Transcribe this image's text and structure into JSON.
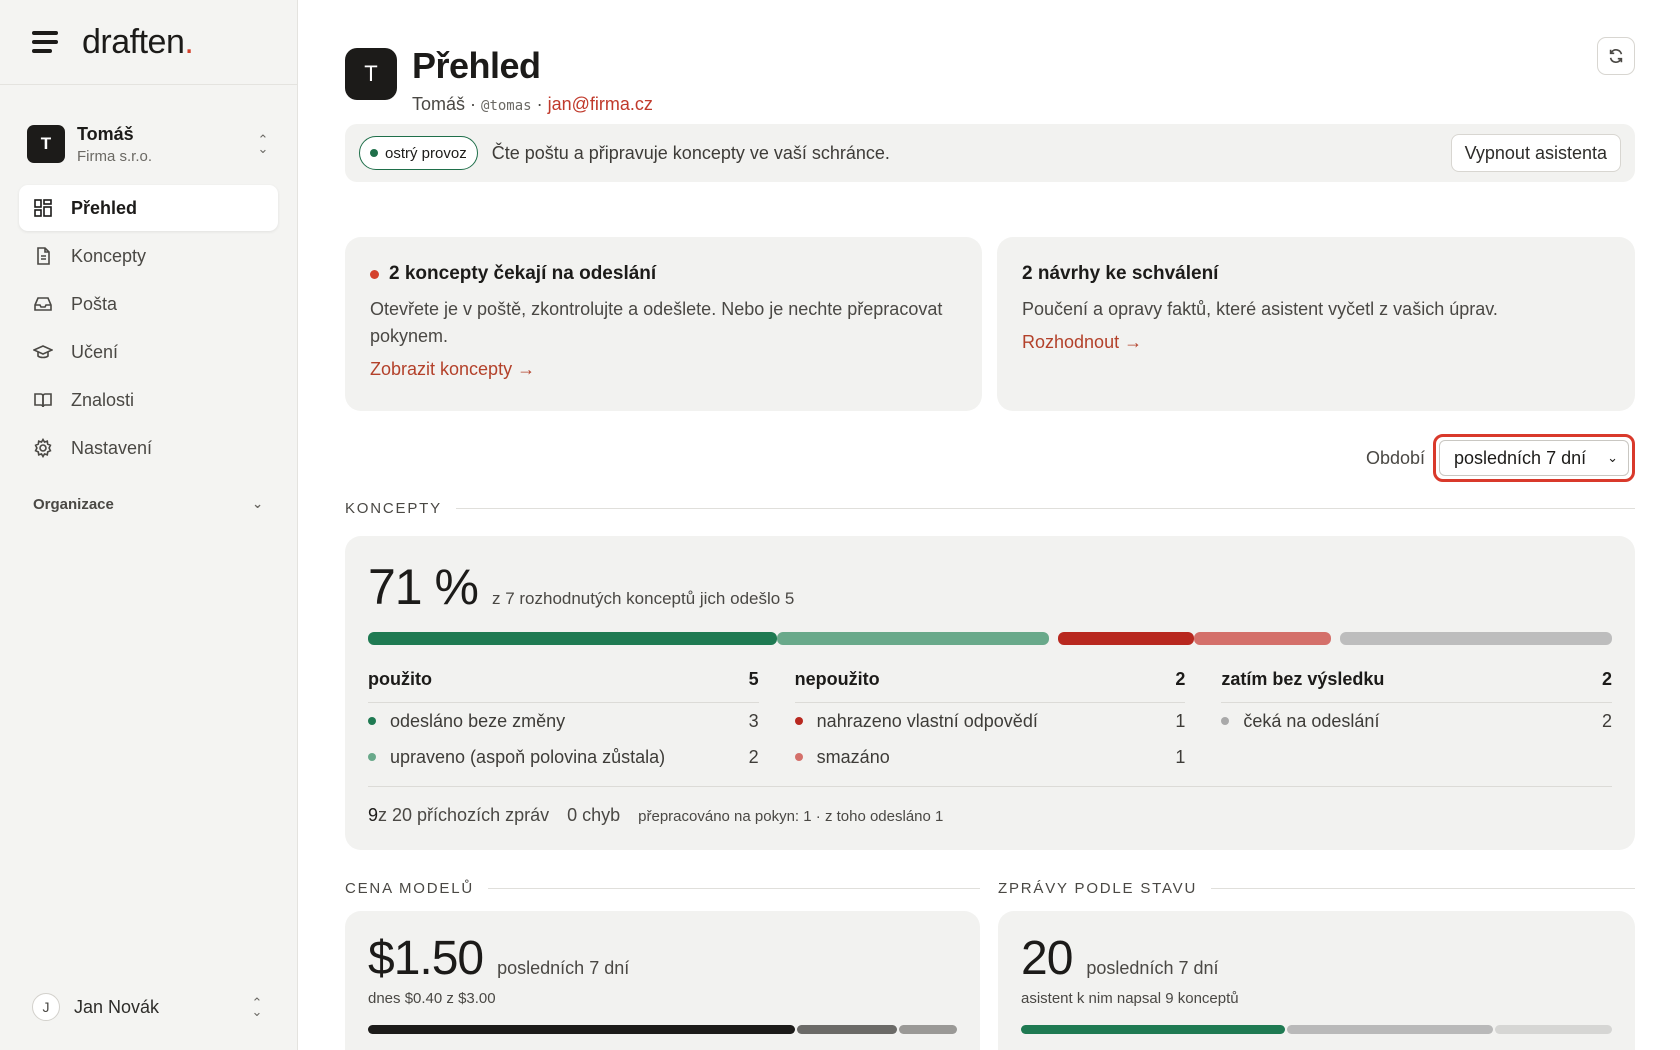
{
  "brand": {
    "name": "draften",
    "dot": "."
  },
  "workspace": {
    "initial": "T",
    "name": "Tomáš",
    "company": "Firma s.r.o."
  },
  "nav": [
    {
      "label": "Přehled",
      "icon": "dashboard-icon",
      "active": true
    },
    {
      "label": "Koncepty",
      "icon": "document-icon"
    },
    {
      "label": "Pošta",
      "icon": "inbox-icon"
    },
    {
      "label": "Učení",
      "icon": "graduation-cap-icon"
    },
    {
      "label": "Znalosti",
      "icon": "book-icon"
    },
    {
      "label": "Nastavení",
      "icon": "gear-icon"
    }
  ],
  "org_section": {
    "label": "Organizace"
  },
  "user": {
    "initial": "J",
    "name": "Jan Novák"
  },
  "header": {
    "initial": "T",
    "title": "Přehled",
    "name": "Tomáš",
    "sep1": " · ",
    "handle": "@tomas",
    "sep2": " · ",
    "email": "jan@firma.cz"
  },
  "status": {
    "badge": "ostrý provoz",
    "text": "Čte poštu a připravuje koncepty ve vaší schránce.",
    "button": "Vypnout asistenta"
  },
  "cards": {
    "drafts": {
      "title": "2 koncepty čekají na odeslání",
      "text": "Otevřete je v poště, zkontrolujte a odešlete. Nebo je nechte přepracovat pokynem.",
      "link": "Zobrazit koncepty →"
    },
    "proposals": {
      "title": "2 návrhy ke schválení",
      "text": "Poučení a opravy faktů, které asistent vyčetl z vašich úprav.",
      "link": "Rozhodnout →"
    }
  },
  "period": {
    "label": "Období",
    "selected": "posledních 7 dní"
  },
  "concepts": {
    "section": "KONCEPTY",
    "pct": "71 %",
    "desc": "z 7 rozhodnutých konceptů jich odešlo 5",
    "colors": {
      "used_a": "#1f7a52",
      "used_b": "#69a98a",
      "unused_a": "#b8281f",
      "unused_b": "#d4706a",
      "pending": "#bdbdbd"
    },
    "segments": [
      {
        "value": 3,
        "color": "#1f7a52"
      },
      {
        "value": 2,
        "color": "#69a98a"
      },
      {
        "value": 1,
        "color": "#b8281f"
      },
      {
        "value": 1,
        "color": "#d4706a"
      },
      {
        "value": 2,
        "color": "#bdbdbd"
      }
    ],
    "columns": [
      {
        "title": "použito",
        "count": "5",
        "rows": [
          {
            "label": "odesláno beze změny",
            "value": "3",
            "color": "#1f7a52"
          },
          {
            "label": "upraveno (aspoň polovina zůstala)",
            "value": "2",
            "color": "#69a98a"
          }
        ]
      },
      {
        "title": "nepoužito",
        "count": "2",
        "rows": [
          {
            "label": "nahrazeno vlastní odpovědí",
            "value": "1",
            "color": "#b8281f"
          },
          {
            "label": "smazáno",
            "value": "1",
            "color": "#d4706a"
          }
        ]
      },
      {
        "title": "zatím bez výsledku",
        "count": "2",
        "rows": [
          {
            "label": "čeká na odeslání",
            "value": "2",
            "color": "#a9a9a9"
          }
        ]
      }
    ],
    "footer": {
      "count": "9",
      "of_text": " z 20 příchozích zpráv",
      "errors": "0 chyb",
      "reworked": "přepracováno na pokyn: 1 · z toho odesláno 1"
    }
  },
  "cost": {
    "section": "CENA MODELŮ",
    "amount": "$1.50",
    "period": "posledních 7 dní",
    "sub": "dnes $0.40 z $3.00",
    "segments": [
      {
        "value": 0.73,
        "color": "#1c1b19"
      },
      {
        "value": 0.17,
        "color": "#6b6a67"
      },
      {
        "value": 0.1,
        "color": "#9a9996"
      }
    ]
  },
  "messages": {
    "section": "ZPRÁVY PODLE STAVU",
    "count": "20",
    "period": "posledních 7 dní",
    "sub": "asistent k nim napsal 9 konceptů",
    "segments": [
      {
        "value": 9,
        "color": "#1f7a52"
      },
      {
        "value": 7,
        "color": "#b9b9b9"
      },
      {
        "value": 4,
        "color": "#d6d6d4"
      }
    ]
  }
}
